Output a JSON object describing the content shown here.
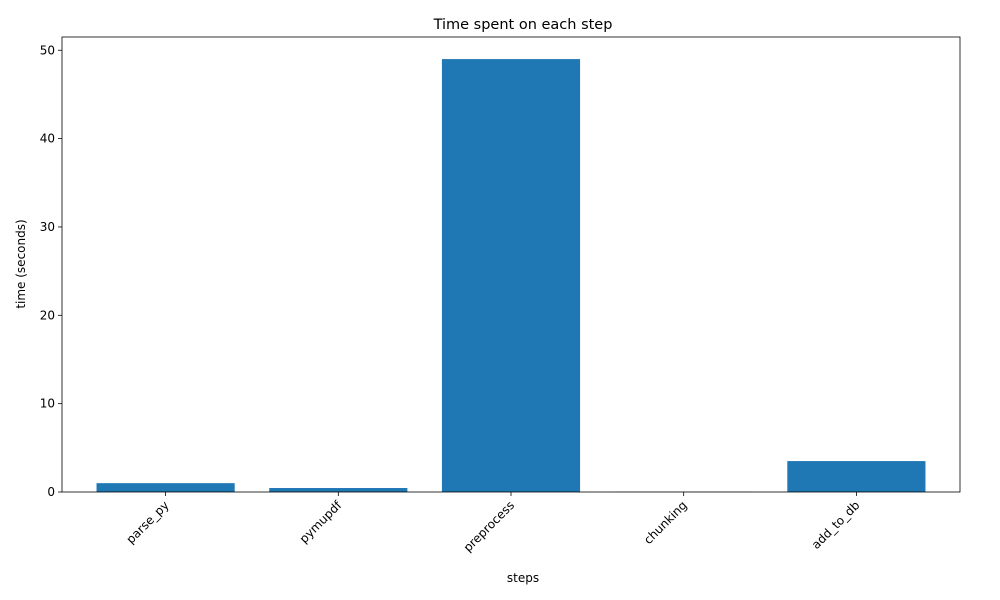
{
  "chart_data": {
    "type": "bar",
    "title": "Time spent on each step",
    "xlabel": "steps",
    "ylabel": "time (seconds)",
    "categories": [
      "parse_py",
      "pymupdf",
      "preprocess",
      "chunking",
      "add_to_db"
    ],
    "values": [
      1.0,
      0.45,
      49.0,
      0.02,
      3.5
    ],
    "ylim": [
      0,
      51.5
    ],
    "yticks": [
      0,
      10,
      20,
      30,
      40,
      50
    ],
    "bar_color": "#1f77b4",
    "grid": false,
    "xtick_rotation": 45
  }
}
